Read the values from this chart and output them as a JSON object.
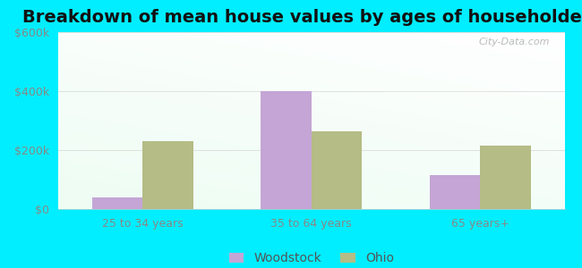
{
  "title": "Breakdown of mean house values by ages of householders",
  "categories": [
    "25 to 34 years",
    "35 to 64 years",
    "65 years+"
  ],
  "woodstock_values": [
    40000,
    400000,
    115000
  ],
  "ohio_values": [
    230000,
    265000,
    215000
  ],
  "woodstock_color": "#c4a5d5",
  "ohio_color": "#b5bc86",
  "ylim": [
    0,
    600000
  ],
  "yticks": [
    0,
    200000,
    400000,
    600000
  ],
  "ytick_labels": [
    "$0",
    "$200k",
    "$400k",
    "$600k"
  ],
  "bar_width": 0.3,
  "bg_outer": "#00eeff",
  "watermark": "City-Data.com",
  "legend_woodstock": "Woodstock",
  "legend_ohio": "Ohio",
  "title_fontsize": 14,
  "tick_fontsize": 9,
  "legend_fontsize": 10
}
